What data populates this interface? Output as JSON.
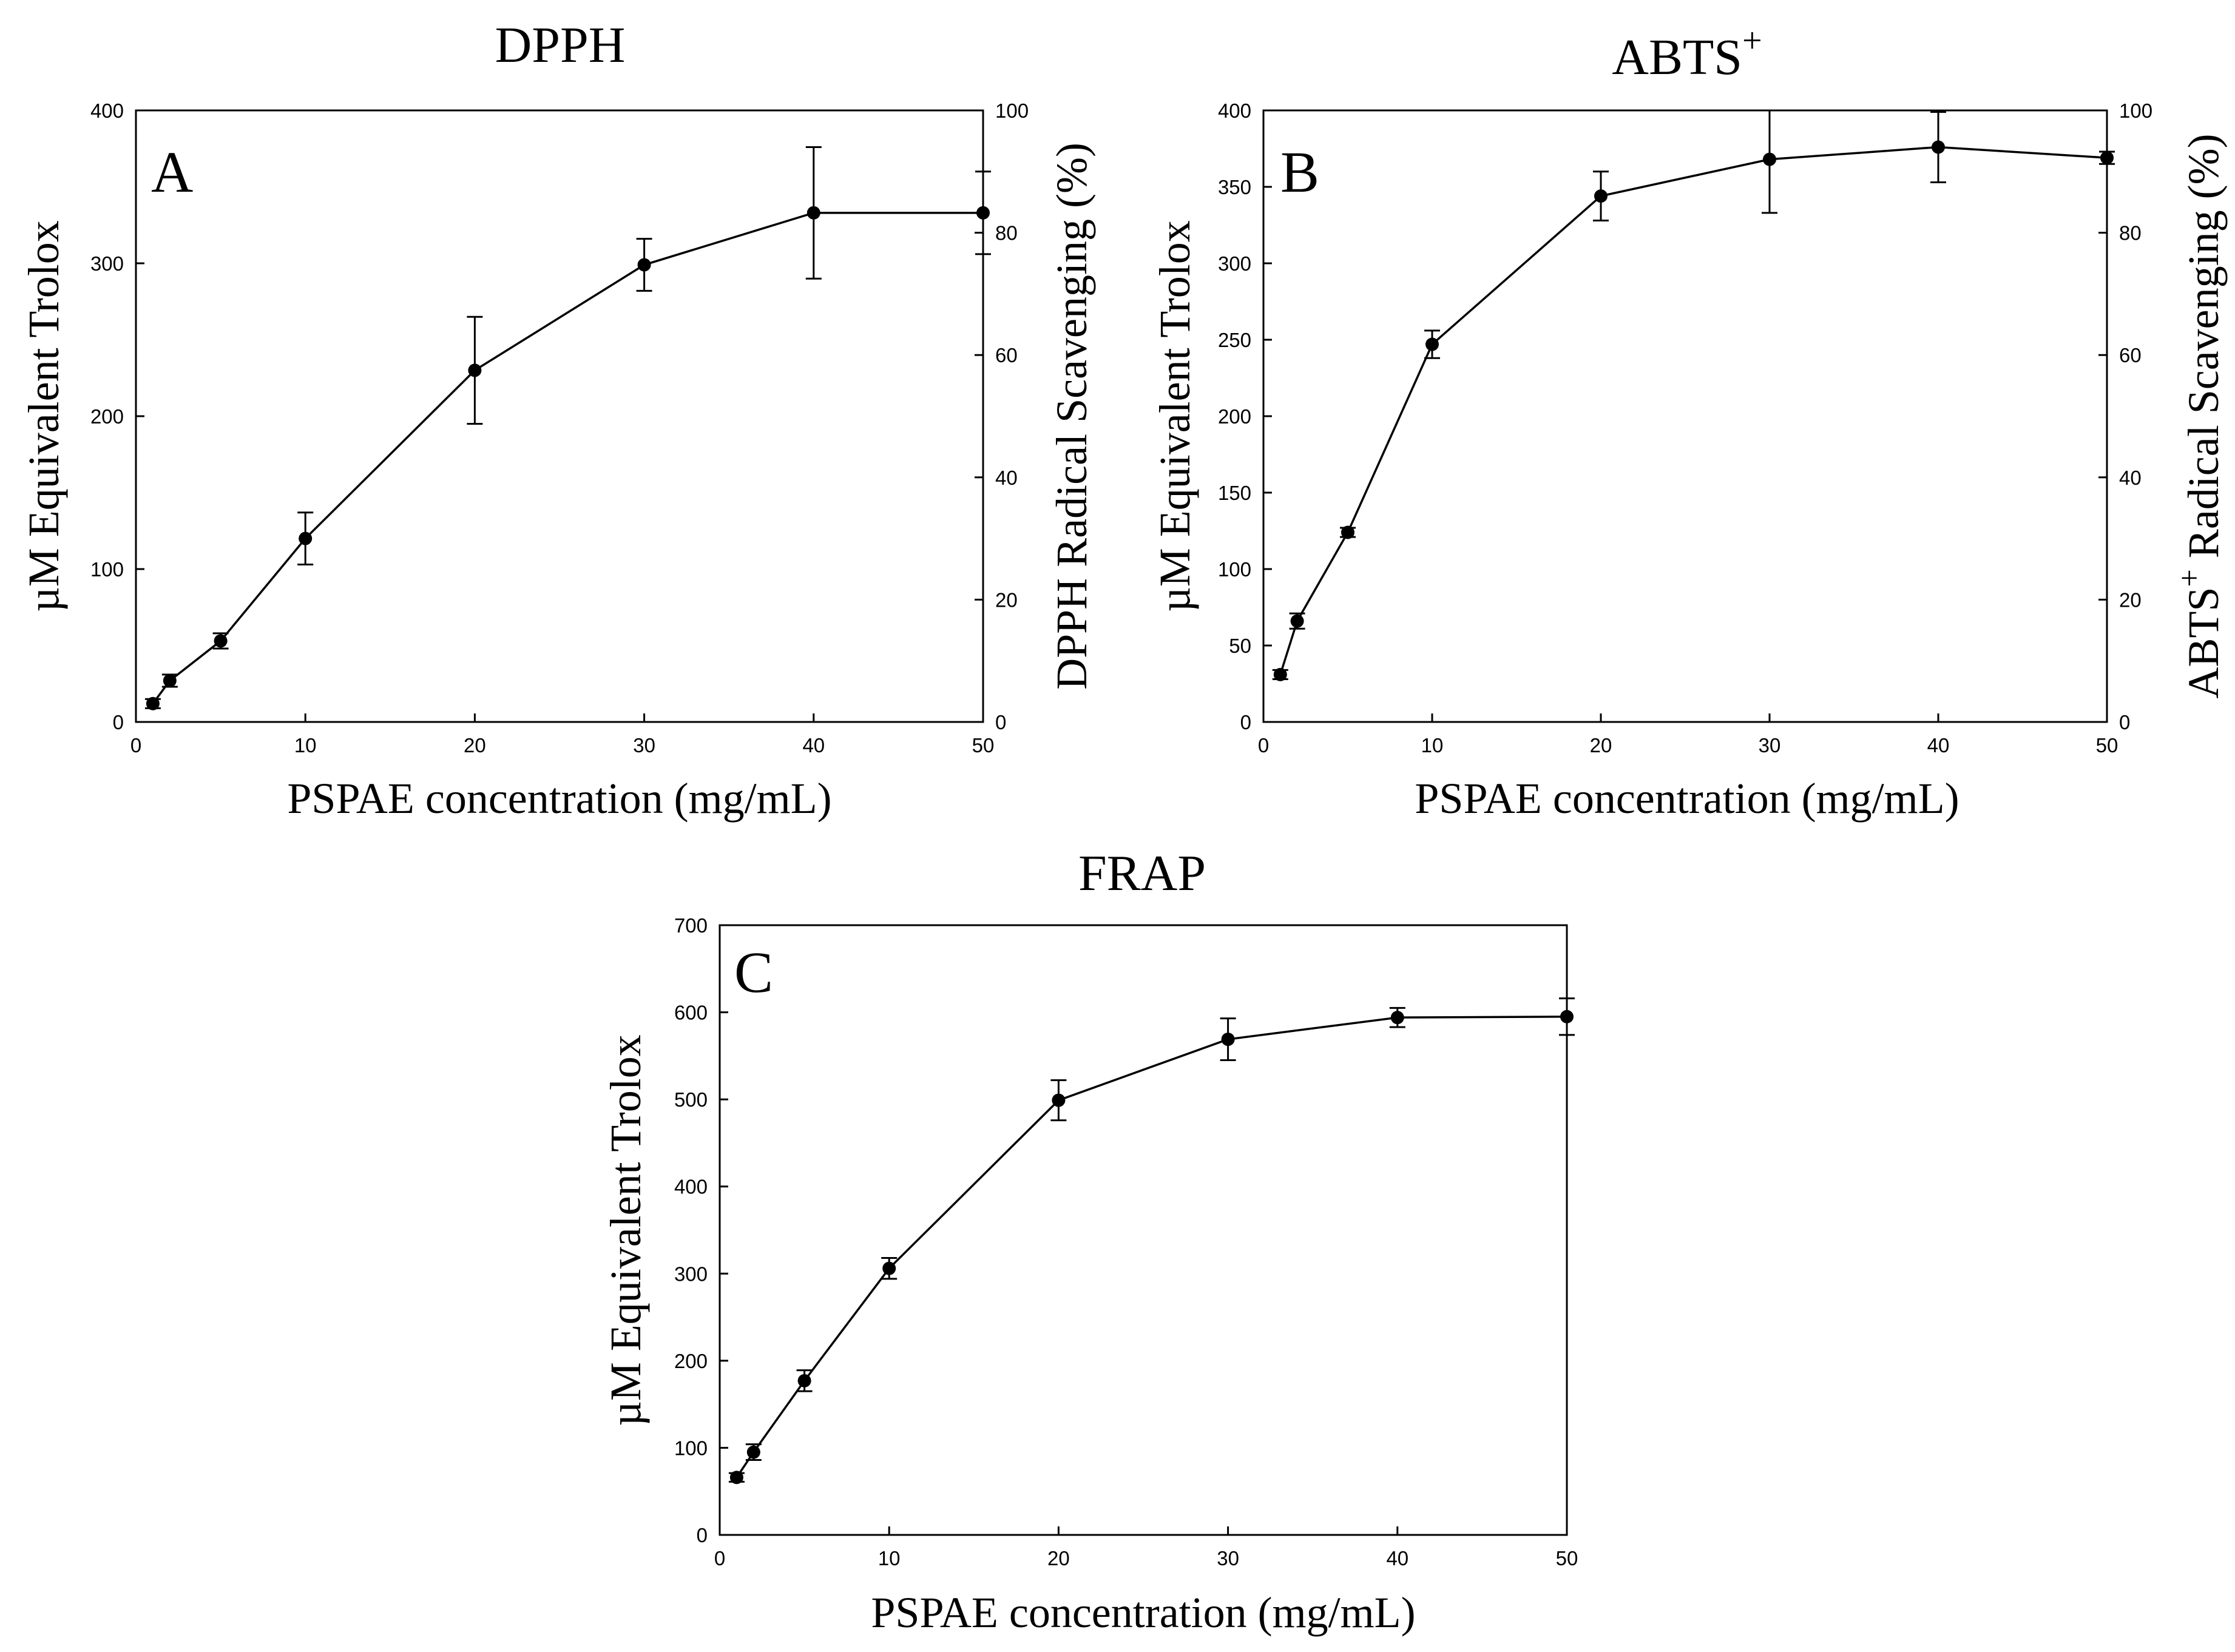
{
  "chart_data": [
    {
      "id": "A",
      "type": "line",
      "title": "DPPH",
      "title_sup": "",
      "panel_label": "A",
      "xlabel": "PSPAE concentration (mg/mL)",
      "ylabel": "µM Equivalent Trolox",
      "y2label": "DPPH Radical Scavenging (%)",
      "y2label_sup": "",
      "y2label_rest": "",
      "xlim": [
        0,
        50
      ],
      "ylim": [
        0,
        400
      ],
      "y2lim": [
        0,
        100
      ],
      "xticks": [
        "0",
        "10",
        "20",
        "30",
        "40",
        "50"
      ],
      "yticks": [
        "0",
        "100",
        "200",
        "300",
        "400"
      ],
      "y2ticks": [
        "0",
        "20",
        "40",
        "60",
        "80",
        "100"
      ],
      "x": [
        1,
        2,
        5,
        10,
        20,
        30,
        40,
        50
      ],
      "y": [
        12,
        27,
        53,
        120,
        230,
        299,
        333,
        333
      ],
      "err": [
        3,
        4,
        5,
        17,
        35,
        17,
        43,
        27
      ],
      "marker": "circle",
      "grid": false
    },
    {
      "id": "B",
      "type": "line",
      "title": "ABTS",
      "title_sup": "+",
      "panel_label": "B",
      "xlabel": "PSPAE concentration (mg/mL)",
      "ylabel": "µM Equivalent Trolox",
      "y2label": "ABTS",
      "y2label_sup": "+",
      "y2label_rest": " Radical Scavenging (%)",
      "xlim": [
        0,
        50
      ],
      "ylim": [
        0,
        400
      ],
      "y2lim": [
        0,
        100
      ],
      "xticks": [
        "0",
        "10",
        "20",
        "30",
        "40",
        "50"
      ],
      "yticks": [
        "0",
        "50",
        "100",
        "150",
        "200",
        "250",
        "300",
        "350",
        "400"
      ],
      "y2ticks": [
        "0",
        "20",
        "40",
        "60",
        "80",
        "100"
      ],
      "x": [
        1,
        2,
        5,
        10,
        20,
        30,
        40,
        50
      ],
      "y": [
        31,
        66,
        124,
        247,
        344,
        368,
        376,
        369
      ],
      "err": [
        3,
        5,
        3,
        9,
        16,
        35,
        23,
        4
      ],
      "marker": "circle",
      "grid": false
    },
    {
      "id": "C",
      "type": "line",
      "title": "FRAP",
      "title_sup": "",
      "panel_label": "C",
      "xlabel": "PSPAE concentration (mg/mL)",
      "ylabel": "µM Equivalent Trolox",
      "y2label": "",
      "y2label_sup": "",
      "y2label_rest": "",
      "xlim": [
        0,
        50
      ],
      "ylim": [
        0,
        700
      ],
      "y2lim": null,
      "xticks": [
        "0",
        "10",
        "20",
        "30",
        "40",
        "50"
      ],
      "yticks": [
        "0",
        "100",
        "200",
        "300",
        "400",
        "500",
        "600",
        "700"
      ],
      "y2ticks": [],
      "x": [
        1,
        2,
        5,
        10,
        20,
        30,
        40,
        50
      ],
      "y": [
        66,
        95,
        177,
        306,
        499,
        569,
        594,
        595
      ],
      "err": [
        5,
        9,
        12,
        12,
        23,
        24,
        11,
        21
      ],
      "marker": "circle",
      "grid": false
    }
  ]
}
